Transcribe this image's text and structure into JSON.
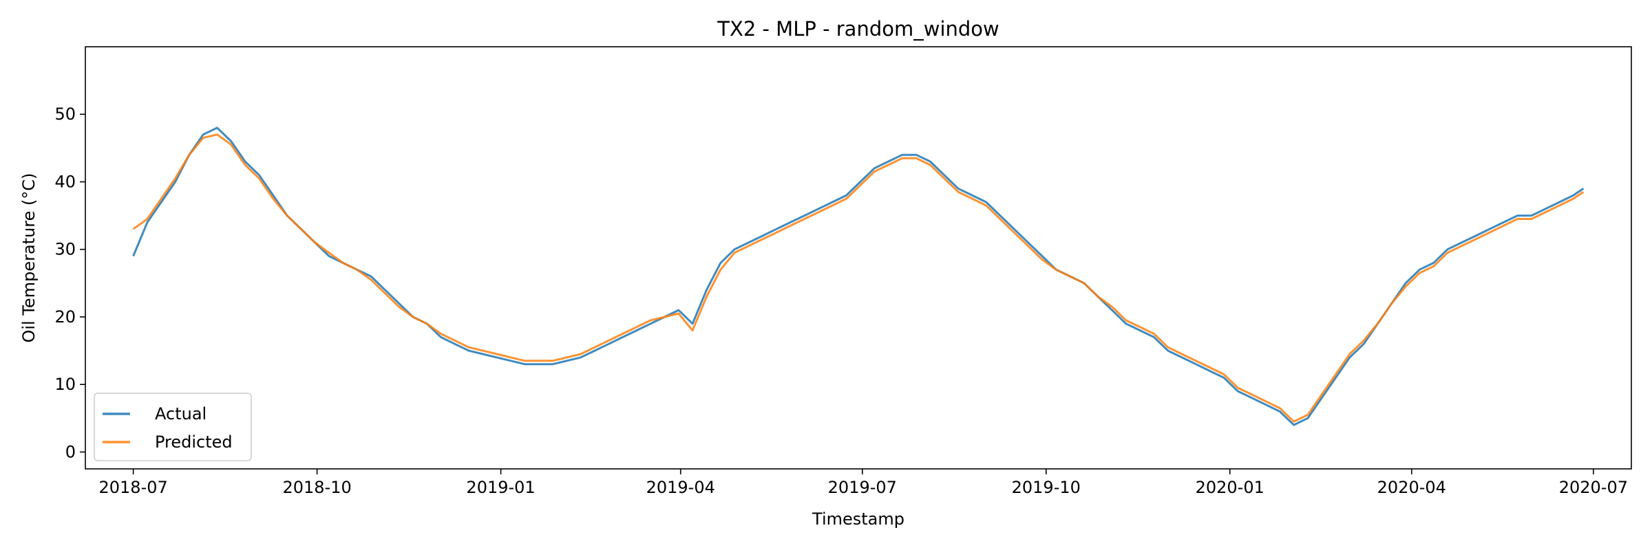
{
  "chart_data": {
    "type": "line",
    "title": "TX2 - MLP - random_window",
    "xlabel": "Timestamp",
    "ylabel": "Oil Temperature (°C)",
    "xlim": [
      "2018-06-07",
      "2020-07-20"
    ],
    "ylim": [
      -2.5,
      60
    ],
    "x_ticks": [
      {
        "date": "2018-07-01",
        "label": "2018-07"
      },
      {
        "date": "2018-10-01",
        "label": "2018-10"
      },
      {
        "date": "2019-01-01",
        "label": "2019-01"
      },
      {
        "date": "2019-04-01",
        "label": "2019-04"
      },
      {
        "date": "2019-07-01",
        "label": "2019-07"
      },
      {
        "date": "2019-10-01",
        "label": "2019-10"
      },
      {
        "date": "2020-01-01",
        "label": "2020-01"
      },
      {
        "date": "2020-04-01",
        "label": "2020-04"
      },
      {
        "date": "2020-07-01",
        "label": "2020-07"
      }
    ],
    "y_ticks": [
      0,
      10,
      20,
      30,
      40,
      50
    ],
    "legend": {
      "placement": "lower-left"
    },
    "grid": false,
    "x_start": "2018-07-01",
    "x_end": "2020-06-26",
    "series": [
      {
        "name": "Actual",
        "color": "#1f77b4",
        "points": [
          [
            "2018-07-01",
            29
          ],
          [
            "2018-07-08",
            34
          ],
          [
            "2018-07-15",
            37
          ],
          [
            "2018-07-22",
            40
          ],
          [
            "2018-07-29",
            44
          ],
          [
            "2018-08-05",
            47
          ],
          [
            "2018-08-12",
            48
          ],
          [
            "2018-08-19",
            46
          ],
          [
            "2018-08-26",
            43
          ],
          [
            "2018-09-02",
            41
          ],
          [
            "2018-09-09",
            38
          ],
          [
            "2018-09-16",
            35
          ],
          [
            "2018-09-23",
            33
          ],
          [
            "2018-09-30",
            31
          ],
          [
            "2018-10-07",
            29
          ],
          [
            "2018-10-14",
            28
          ],
          [
            "2018-10-21",
            27
          ],
          [
            "2018-10-28",
            26
          ],
          [
            "2018-11-04",
            24
          ],
          [
            "2018-11-11",
            22
          ],
          [
            "2018-11-18",
            20
          ],
          [
            "2018-11-25",
            19
          ],
          [
            "2018-12-02",
            17
          ],
          [
            "2018-12-09",
            16
          ],
          [
            "2018-12-16",
            15
          ],
          [
            "2018-12-23",
            14.5
          ],
          [
            "2018-12-30",
            14
          ],
          [
            "2019-01-06",
            13.5
          ],
          [
            "2019-01-13",
            13
          ],
          [
            "2019-01-20",
            13
          ],
          [
            "2019-01-27",
            13
          ],
          [
            "2019-02-03",
            13.5
          ],
          [
            "2019-02-10",
            14
          ],
          [
            "2019-02-17",
            15
          ],
          [
            "2019-02-24",
            16
          ],
          [
            "2019-03-03",
            17
          ],
          [
            "2019-03-10",
            18
          ],
          [
            "2019-03-17",
            19
          ],
          [
            "2019-03-24",
            20
          ],
          [
            "2019-03-31",
            21
          ],
          [
            "2019-04-07",
            19
          ],
          [
            "2019-04-14",
            24
          ],
          [
            "2019-04-21",
            28
          ],
          [
            "2019-04-28",
            30
          ],
          [
            "2019-05-05",
            31
          ],
          [
            "2019-05-12",
            32
          ],
          [
            "2019-05-19",
            33
          ],
          [
            "2019-05-26",
            34
          ],
          [
            "2019-06-02",
            35
          ],
          [
            "2019-06-09",
            36
          ],
          [
            "2019-06-16",
            37
          ],
          [
            "2019-06-23",
            38
          ],
          [
            "2019-06-30",
            40
          ],
          [
            "2019-07-07",
            42
          ],
          [
            "2019-07-14",
            43
          ],
          [
            "2019-07-21",
            44
          ],
          [
            "2019-07-28",
            44
          ],
          [
            "2019-08-04",
            43
          ],
          [
            "2019-08-11",
            41
          ],
          [
            "2019-08-18",
            39
          ],
          [
            "2019-08-25",
            38
          ],
          [
            "2019-09-01",
            37
          ],
          [
            "2019-09-08",
            35
          ],
          [
            "2019-09-15",
            33
          ],
          [
            "2019-09-22",
            31
          ],
          [
            "2019-09-29",
            29
          ],
          [
            "2019-10-06",
            27
          ],
          [
            "2019-10-13",
            26
          ],
          [
            "2019-10-20",
            25
          ],
          [
            "2019-10-27",
            23
          ],
          [
            "2019-11-03",
            21
          ],
          [
            "2019-11-10",
            19
          ],
          [
            "2019-11-17",
            18
          ],
          [
            "2019-11-24",
            17
          ],
          [
            "2019-12-01",
            15
          ],
          [
            "2019-12-08",
            14
          ],
          [
            "2019-12-15",
            13
          ],
          [
            "2019-12-22",
            12
          ],
          [
            "2019-12-29",
            11
          ],
          [
            "2020-01-05",
            9
          ],
          [
            "2020-01-12",
            8
          ],
          [
            "2020-01-19",
            7
          ],
          [
            "2020-01-26",
            6
          ],
          [
            "2020-02-02",
            4
          ],
          [
            "2020-02-09",
            5
          ],
          [
            "2020-02-16",
            8
          ],
          [
            "2020-02-23",
            11
          ],
          [
            "2020-03-01",
            14
          ],
          [
            "2020-03-08",
            16
          ],
          [
            "2020-03-15",
            19
          ],
          [
            "2020-03-22",
            22
          ],
          [
            "2020-03-29",
            25
          ],
          [
            "2020-04-05",
            27
          ],
          [
            "2020-04-12",
            28
          ],
          [
            "2020-04-19",
            30
          ],
          [
            "2020-04-26",
            31
          ],
          [
            "2020-05-03",
            32
          ],
          [
            "2020-05-10",
            33
          ],
          [
            "2020-05-17",
            34
          ],
          [
            "2020-05-24",
            35
          ],
          [
            "2020-05-31",
            35
          ],
          [
            "2020-06-07",
            36
          ],
          [
            "2020-06-14",
            37
          ],
          [
            "2020-06-21",
            38
          ],
          [
            "2020-06-26",
            39
          ]
        ]
      },
      {
        "name": "Predicted",
        "color": "#ff7f0e",
        "points": [
          [
            "2018-07-01",
            33
          ],
          [
            "2018-07-08",
            34.5
          ],
          [
            "2018-07-15",
            37.5
          ],
          [
            "2018-07-22",
            40.5
          ],
          [
            "2018-07-29",
            44
          ],
          [
            "2018-08-05",
            46.5
          ],
          [
            "2018-08-12",
            47
          ],
          [
            "2018-08-19",
            45.5
          ],
          [
            "2018-08-26",
            42.5
          ],
          [
            "2018-09-02",
            40.5
          ],
          [
            "2018-09-09",
            37.5
          ],
          [
            "2018-09-16",
            35
          ],
          [
            "2018-09-23",
            33
          ],
          [
            "2018-09-30",
            31
          ],
          [
            "2018-10-07",
            29.5
          ],
          [
            "2018-10-14",
            28
          ],
          [
            "2018-10-21",
            27
          ],
          [
            "2018-10-28",
            25.5
          ],
          [
            "2018-11-04",
            23.5
          ],
          [
            "2018-11-11",
            21.5
          ],
          [
            "2018-11-18",
            20
          ],
          [
            "2018-11-25",
            19
          ],
          [
            "2018-12-02",
            17.5
          ],
          [
            "2018-12-09",
            16.5
          ],
          [
            "2018-12-16",
            15.5
          ],
          [
            "2018-12-23",
            15
          ],
          [
            "2018-12-30",
            14.5
          ],
          [
            "2019-01-06",
            14
          ],
          [
            "2019-01-13",
            13.5
          ],
          [
            "2019-01-20",
            13.5
          ],
          [
            "2019-01-27",
            13.5
          ],
          [
            "2019-02-03",
            14
          ],
          [
            "2019-02-10",
            14.5
          ],
          [
            "2019-02-17",
            15.5
          ],
          [
            "2019-02-24",
            16.5
          ],
          [
            "2019-03-03",
            17.5
          ],
          [
            "2019-03-10",
            18.5
          ],
          [
            "2019-03-17",
            19.5
          ],
          [
            "2019-03-24",
            20
          ],
          [
            "2019-03-31",
            20.5
          ],
          [
            "2019-04-07",
            18
          ],
          [
            "2019-04-14",
            23
          ],
          [
            "2019-04-21",
            27
          ],
          [
            "2019-04-28",
            29.5
          ],
          [
            "2019-05-05",
            30.5
          ],
          [
            "2019-05-12",
            31.5
          ],
          [
            "2019-05-19",
            32.5
          ],
          [
            "2019-05-26",
            33.5
          ],
          [
            "2019-06-02",
            34.5
          ],
          [
            "2019-06-09",
            35.5
          ],
          [
            "2019-06-16",
            36.5
          ],
          [
            "2019-06-23",
            37.5
          ],
          [
            "2019-06-30",
            39.5
          ],
          [
            "2019-07-07",
            41.5
          ],
          [
            "2019-07-14",
            42.5
          ],
          [
            "2019-07-21",
            43.5
          ],
          [
            "2019-07-28",
            43.5
          ],
          [
            "2019-08-04",
            42.5
          ],
          [
            "2019-08-11",
            40.5
          ],
          [
            "2019-08-18",
            38.5
          ],
          [
            "2019-08-25",
            37.5
          ],
          [
            "2019-09-01",
            36.5
          ],
          [
            "2019-09-08",
            34.5
          ],
          [
            "2019-09-15",
            32.5
          ],
          [
            "2019-09-22",
            30.5
          ],
          [
            "2019-09-29",
            28.5
          ],
          [
            "2019-10-06",
            27
          ],
          [
            "2019-10-13",
            26
          ],
          [
            "2019-10-20",
            25
          ],
          [
            "2019-10-27",
            23
          ],
          [
            "2019-11-03",
            21.5
          ],
          [
            "2019-11-10",
            19.5
          ],
          [
            "2019-11-17",
            18.5
          ],
          [
            "2019-11-24",
            17.5
          ],
          [
            "2019-12-01",
            15.5
          ],
          [
            "2019-12-08",
            14.5
          ],
          [
            "2019-12-15",
            13.5
          ],
          [
            "2019-12-22",
            12.5
          ],
          [
            "2019-12-29",
            11.5
          ],
          [
            "2020-01-05",
            9.5
          ],
          [
            "2020-01-12",
            8.5
          ],
          [
            "2020-01-19",
            7.5
          ],
          [
            "2020-01-26",
            6.5
          ],
          [
            "2020-02-02",
            4.5
          ],
          [
            "2020-02-09",
            5.5
          ],
          [
            "2020-02-16",
            8.5
          ],
          [
            "2020-02-23",
            11.5
          ],
          [
            "2020-03-01",
            14.5
          ],
          [
            "2020-03-08",
            16.5
          ],
          [
            "2020-03-15",
            19
          ],
          [
            "2020-03-22",
            22
          ],
          [
            "2020-03-29",
            24.5
          ],
          [
            "2020-04-05",
            26.5
          ],
          [
            "2020-04-12",
            27.5
          ],
          [
            "2020-04-19",
            29.5
          ],
          [
            "2020-04-26",
            30.5
          ],
          [
            "2020-05-03",
            31.5
          ],
          [
            "2020-05-10",
            32.5
          ],
          [
            "2020-05-17",
            33.5
          ],
          [
            "2020-05-24",
            34.5
          ],
          [
            "2020-05-31",
            34.5
          ],
          [
            "2020-06-07",
            35.5
          ],
          [
            "2020-06-14",
            36.5
          ],
          [
            "2020-06-21",
            37.5
          ],
          [
            "2020-06-26",
            38.5
          ]
        ]
      }
    ]
  }
}
